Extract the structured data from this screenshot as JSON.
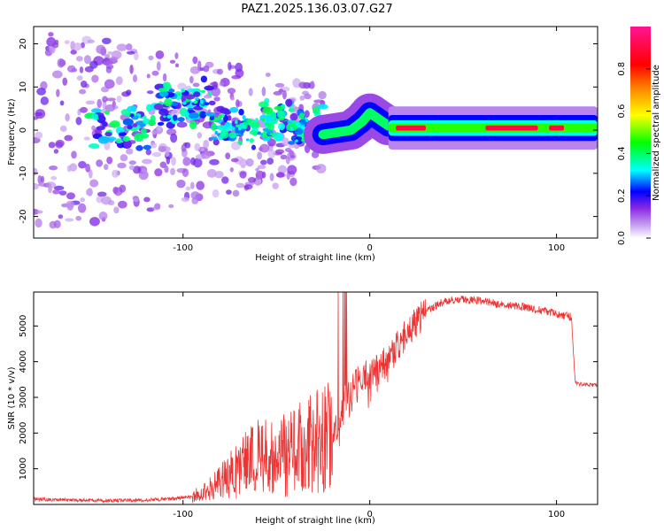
{
  "figure_title": "PAZ1.2025.136.03.07.G27",
  "chart_data": [
    {
      "type": "heatmap",
      "xlabel": "Height of straight line (km)",
      "ylabel": "Frequency (Hz)",
      "xlim": [
        -180,
        122
      ],
      "ylim": [
        -25,
        24
      ],
      "xticks": [
        -100,
        0,
        100
      ],
      "xtick_labels": [
        "-100",
        "0",
        "100"
      ],
      "yticks": [
        -20,
        -10,
        0,
        10,
        20
      ],
      "ytick_labels": [
        "-20",
        "-10",
        "0",
        "10",
        "20"
      ],
      "colorbar": {
        "label": "Normalized spectral amplitude",
        "range": [
          0,
          1
        ],
        "ticks": [
          0,
          0.2,
          0.4,
          0.6,
          0.8
        ],
        "tick_labels": [
          "0.0",
          "0.2",
          "0.4",
          "0.6",
          "0.8"
        ],
        "colormap": [
          "#ffffff",
          "#8a2be2",
          "#0000ff",
          "#00ffff",
          "#00ff00",
          "#ffff00",
          "#ff8c00",
          "#ff0000",
          "#ff1493"
        ]
      },
      "features": [
        {
          "segment": "diffuse noise",
          "x_range": [
            -180,
            -25
          ],
          "freq_center": 0,
          "freq_spread": 24,
          "amplitude": 0.15
        },
        {
          "segment": "clustered signal",
          "x_range": [
            -150,
            -25
          ],
          "freq_center": 1,
          "freq_spread": 6,
          "amplitude": 0.3
        },
        {
          "segment": "rising arc",
          "x": [
            -25,
            -10,
            -4,
            0,
            10
          ],
          "freq": [
            -1,
            0,
            2,
            4,
            1
          ],
          "amplitude": 0.4
        },
        {
          "segment": "steady tone",
          "x_range": [
            10,
            122
          ],
          "freq_center": 0.5,
          "amplitude": 0.9
        }
      ]
    },
    {
      "type": "line",
      "xlabel": "Height of straight line (km)",
      "ylabel": "SNR (10 * v/v)",
      "xlim": [
        -180,
        122
      ],
      "ylim": [
        0,
        5950
      ],
      "xticks": [
        -100,
        0,
        100
      ],
      "xtick_labels": [
        "-100",
        "0",
        "100"
      ],
      "yticks": [
        1000,
        2000,
        3000,
        4000,
        5000
      ],
      "ytick_labels": [
        "1000",
        "2000",
        "3000",
        "4000",
        "5000"
      ],
      "line_color": "#ee3333",
      "series": [
        {
          "x": [
            -180,
            -160,
            -140,
            -120,
            -100,
            -90,
            -80,
            -70,
            -65,
            -60,
            -50,
            -40,
            -30,
            -25,
            -20,
            -17,
            -15,
            -13,
            -10,
            -5,
            0,
            5,
            10,
            20,
            30,
            40,
            50,
            60,
            70,
            80,
            90,
            100,
            108,
            110,
            115,
            122
          ],
          "values": [
            150,
            120,
            110,
            120,
            180,
            300,
            600,
            1000,
            1200,
            1300,
            1300,
            1500,
            1700,
            1800,
            1900,
            2200,
            2600,
            3000,
            3200,
            3500,
            3700,
            3800,
            4100,
            4800,
            5400,
            5700,
            5750,
            5700,
            5600,
            5550,
            5450,
            5350,
            5250,
            3400,
            3350,
            3350
          ]
        }
      ]
    }
  ]
}
